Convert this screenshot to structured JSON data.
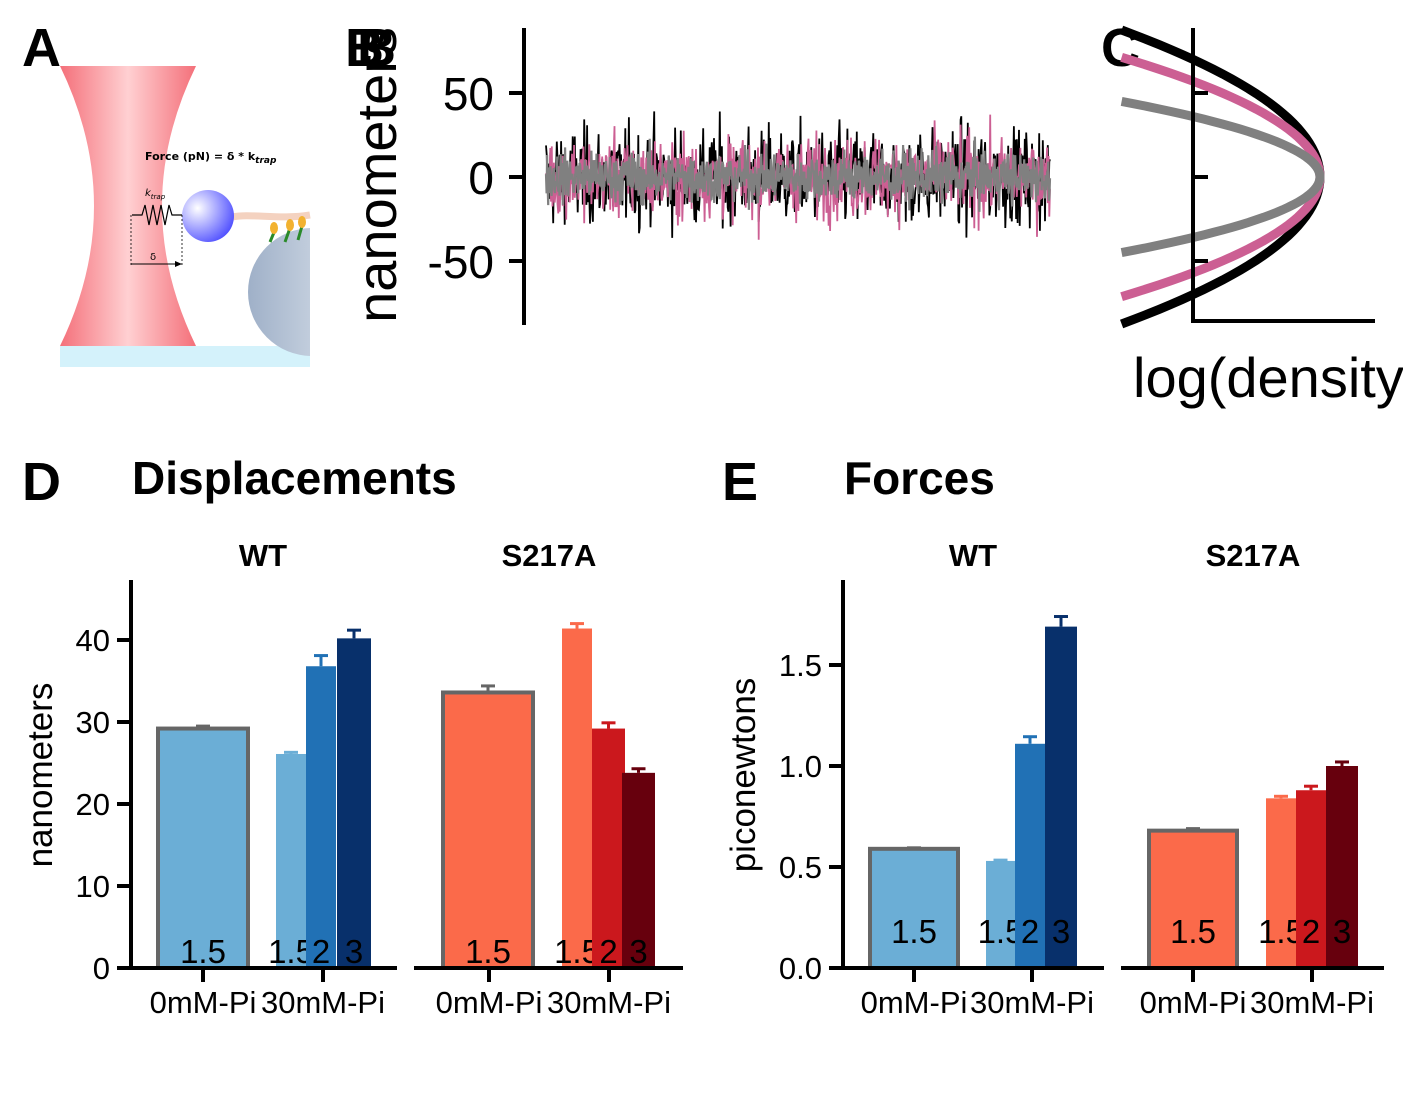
{
  "panels": {
    "A": {
      "label": "A",
      "formula_text": "Force (pN) = δ * k",
      "formula_sub": "trap",
      "spring_label": "k",
      "spring_sub": "trap",
      "delta_label": "δ"
    },
    "B": {
      "label": "B",
      "overlap_label": "B",
      "ylabel": "nanometers",
      "yticks": [
        "50",
        "0",
        "-50"
      ]
    },
    "C": {
      "label": "C",
      "xlabel": "log(density)"
    },
    "D": {
      "label": "D",
      "title": "Displacements",
      "ylabel": "nanometers",
      "yticks": [
        "0",
        "10",
        "20",
        "30",
        "40"
      ],
      "facets": [
        "WT",
        "S217A"
      ],
      "xticks": [
        "0mM-Pi",
        "30mM-Pi"
      ]
    },
    "E": {
      "label": "E",
      "title": "Forces",
      "ylabel": "piconewtons",
      "yticks": [
        "0.0",
        "0.5",
        "1.0",
        "1.5"
      ],
      "facets": [
        "WT",
        "S217A"
      ],
      "xticks": [
        "0mM-Pi",
        "30mM-Pi"
      ]
    }
  },
  "colors": {
    "black_trace": "#000000",
    "pink_trace": "#cc5f93",
    "gray_trace": "#808080",
    "wt_light": "#6baed6",
    "wt_mid": "#2171b5",
    "wt_dark": "#08306b",
    "s217a_light": "#fb6a4a",
    "s217a_mid": "#cb181d",
    "s217a_dark": "#67000d",
    "outline": "#666666",
    "laser": "#f4707a",
    "bead": "#6f6fff",
    "coverslip": "#d4f2fb"
  },
  "chart_data": [
    {
      "panel": "B",
      "type": "line",
      "ylabel": "nanometers",
      "ylim": [
        -87,
        88
      ],
      "series": [
        {
          "color": "black",
          "amplitude_nm": [
            -70,
            72
          ]
        },
        {
          "color": "pink",
          "amplitude_nm": [
            -60,
            60
          ]
        },
        {
          "color": "gray",
          "amplitude_nm": [
            -38,
            38
          ]
        }
      ]
    },
    {
      "panel": "C",
      "type": "line",
      "xlabel": "log(density)",
      "series": [
        {
          "color": "black",
          "spread_nm": 70
        },
        {
          "color": "pink",
          "spread_nm": 57
        },
        {
          "color": "gray",
          "spread_nm": 36
        }
      ]
    },
    {
      "panel": "D",
      "type": "bar",
      "title": "Displacements",
      "ylabel": "nanometers",
      "ylim": [
        0,
        47
      ],
      "facets": [
        {
          "name": "WT",
          "bars": [
            {
              "x": "0mM-Pi",
              "label": "1.5",
              "value": 29.2,
              "error": 0.3,
              "outlined": true
            },
            {
              "x": "30mM-Pi",
              "label": "1.5",
              "value": 26.1,
              "error": 0.2
            },
            {
              "x": "30mM-Pi",
              "label": "2",
              "value": 36.8,
              "error": 1.3
            },
            {
              "x": "30mM-Pi",
              "label": "3",
              "value": 40.2,
              "error": 1.0
            }
          ]
        },
        {
          "name": "S217A",
          "bars": [
            {
              "x": "0mM-Pi",
              "label": "1.5",
              "value": 33.6,
              "error": 0.8,
              "outlined": true
            },
            {
              "x": "30mM-Pi",
              "label": "1.5",
              "value": 41.4,
              "error": 0.6
            },
            {
              "x": "30mM-Pi",
              "label": "2",
              "value": 29.2,
              "error": 0.7
            },
            {
              "x": "30mM-Pi",
              "label": "3",
              "value": 23.8,
              "error": 0.5
            }
          ]
        }
      ]
    },
    {
      "panel": "E",
      "type": "bar",
      "title": "Forces",
      "ylabel": "piconewtons",
      "ylim": [
        0,
        1.9
      ],
      "facets": [
        {
          "name": "WT",
          "bars": [
            {
              "x": "0mM-Pi",
              "label": "1.5",
              "value": 0.59,
              "error": 0.005,
              "outlined": true
            },
            {
              "x": "30mM-Pi",
              "label": "1.5",
              "value": 0.53,
              "error": 0.004
            },
            {
              "x": "30mM-Pi",
              "label": "2",
              "value": 1.11,
              "error": 0.035
            },
            {
              "x": "30mM-Pi",
              "label": "3",
              "value": 1.69,
              "error": 0.05
            }
          ]
        },
        {
          "name": "S217A",
          "bars": [
            {
              "x": "0mM-Pi",
              "label": "1.5",
              "value": 0.68,
              "error": 0.01,
              "outlined": true
            },
            {
              "x": "30mM-Pi",
              "label": "1.5",
              "value": 0.84,
              "error": 0.01
            },
            {
              "x": "30mM-Pi",
              "label": "2",
              "value": 0.88,
              "error": 0.02
            },
            {
              "x": "30mM-Pi",
              "label": "3",
              "value": 1.0,
              "error": 0.02
            }
          ]
        }
      ]
    }
  ]
}
